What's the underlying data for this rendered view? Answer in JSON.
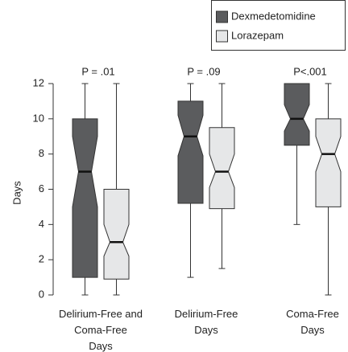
{
  "chart_data": {
    "type": "box",
    "y_label": "Days",
    "categories": [
      [
        "Delirium-Free and",
        "Coma-Free",
        "Days"
      ],
      [
        "Delirium-Free",
        "Days"
      ],
      [
        "Coma-Free",
        "Days"
      ]
    ],
    "annotations": [
      "P = .01",
      "P = .09",
      "P<.001"
    ],
    "ylim": [
      0,
      12
    ],
    "yticks": [
      0,
      2,
      4,
      6,
      8,
      10,
      12
    ],
    "series": [
      {
        "name": "Dexmedetomidine",
        "color": "#5b5c5e",
        "boxes": [
          {
            "min": 0,
            "q1": 1,
            "notch": [
              5,
              9
            ],
            "median": 7,
            "q3": 10,
            "max": 12
          },
          {
            "min": 1,
            "q1": 5.2,
            "notch": [
              7.9,
              10.2
            ],
            "median": 9,
            "q3": 11,
            "max": 12
          },
          {
            "min": 4,
            "q1": 8.5,
            "notch": [
              9.3,
              10.8
            ],
            "median": 10,
            "q3": 12,
            "max": 12
          }
        ]
      },
      {
        "name": "Lorazepam",
        "color": "#e6e7e8",
        "boxes": [
          {
            "min": 0,
            "q1": 0.9,
            "notch": [
              2.2,
              4
            ],
            "median": 3,
            "q3": 6,
            "max": 12
          },
          {
            "min": 1.5,
            "q1": 4.9,
            "notch": [
              6.1,
              8
            ],
            "median": 7,
            "q3": 9.5,
            "max": 12
          },
          {
            "min": 0,
            "q1": 5,
            "notch": [
              7,
              9
            ],
            "median": 8,
            "q3": 10,
            "max": 12
          }
        ]
      }
    ]
  }
}
